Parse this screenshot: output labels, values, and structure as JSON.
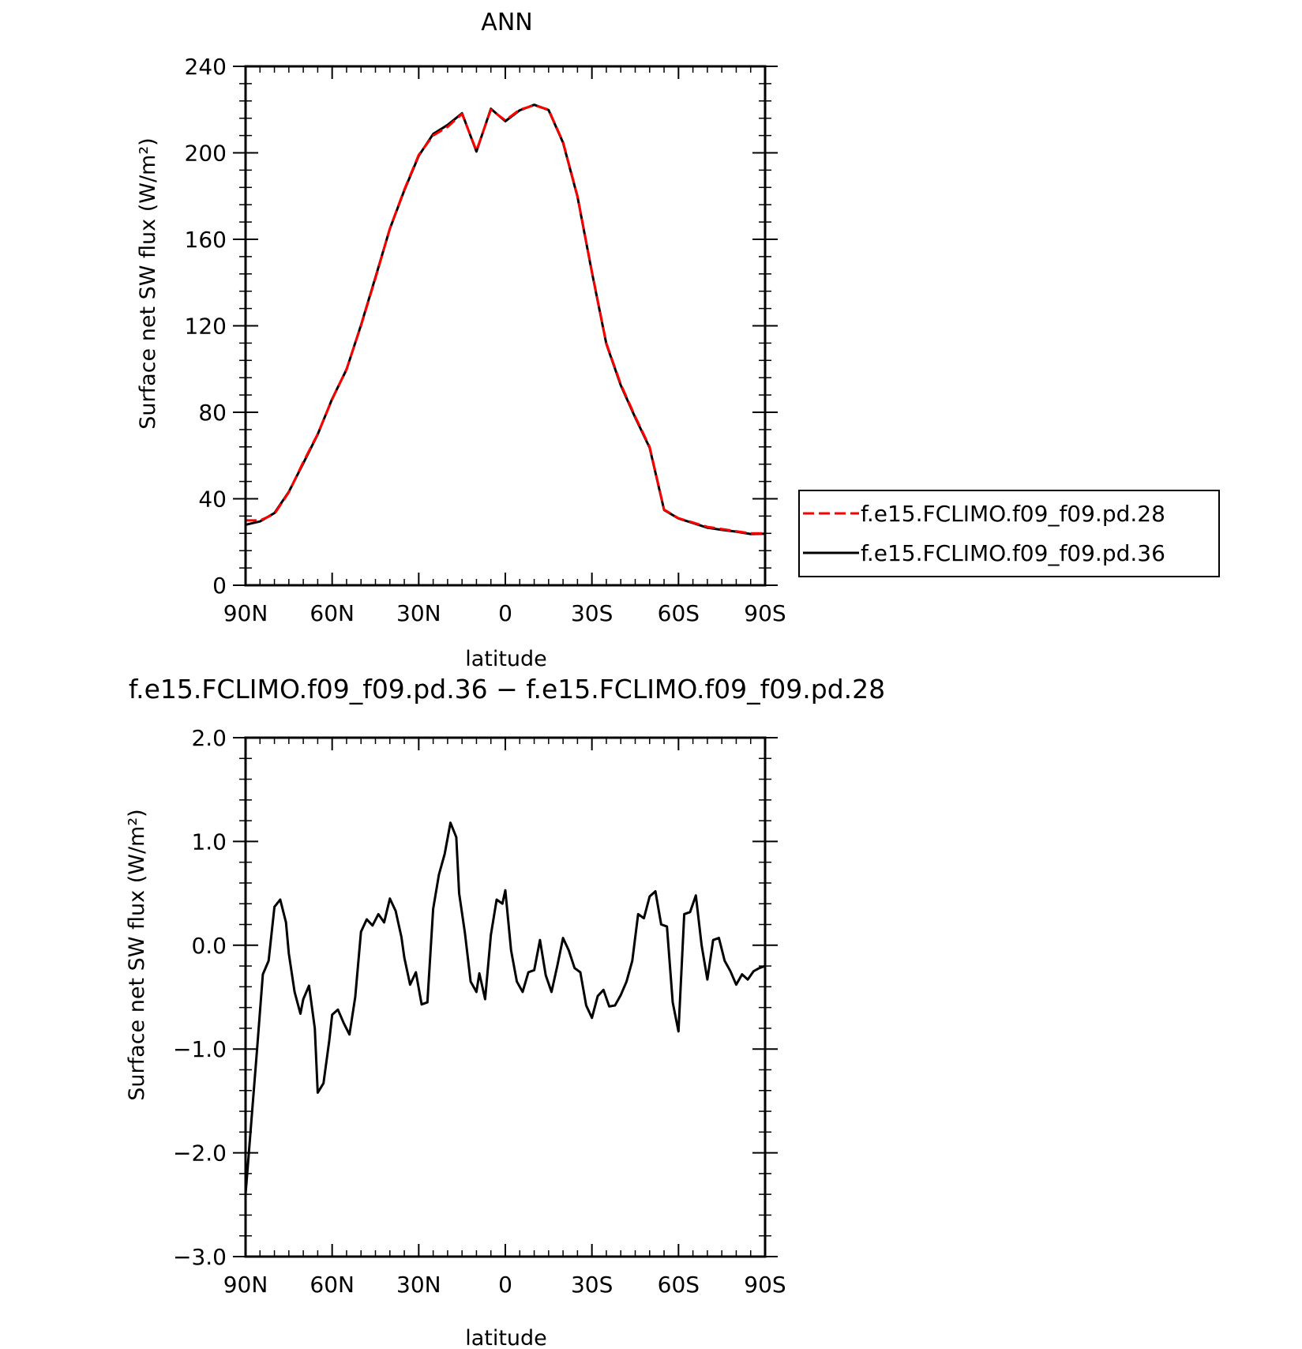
{
  "chart_data": [
    {
      "type": "line",
      "title": "ANN",
      "xlabel": "latitude",
      "ylabel": "Surface net SW flux (W/m²)",
      "xlim": [
        90,
        -90
      ],
      "ylim": [
        0,
        240
      ],
      "x_ticks": [
        90,
        60,
        30,
        0,
        -30,
        -60,
        -90
      ],
      "x_tick_labels": [
        "90N",
        "60N",
        "30N",
        "0",
        "30S",
        "60S",
        "90S"
      ],
      "y_ticks": [
        0,
        40,
        80,
        120,
        160,
        200,
        240
      ],
      "y_tick_labels": [
        "0",
        "40",
        "80",
        "120",
        "160",
        "200",
        "240"
      ],
      "legend": "right",
      "x": [
        90,
        85,
        80,
        75,
        70,
        65,
        60,
        55,
        50,
        45,
        40,
        35,
        30,
        25,
        20,
        15,
        10,
        5,
        0,
        -5,
        -10,
        -15,
        -20,
        -25,
        -30,
        -35,
        -40,
        -45,
        -50,
        -55,
        -60,
        -65,
        -70,
        -75,
        -80,
        -85,
        -90
      ],
      "series": [
        {
          "name": "f.e15.FCLIMO.f09_f09.pd.28",
          "color": "#ff0000",
          "dash": "dashed",
          "values": [
            30,
            30,
            33,
            43,
            57,
            70,
            86,
            100,
            120,
            142,
            165,
            183,
            199,
            208,
            212,
            218,
            201,
            220,
            215,
            220,
            222,
            220,
            205,
            180,
            145,
            112,
            93,
            78,
            64,
            35,
            31,
            29,
            27,
            26,
            25,
            24,
            24
          ]
        },
        {
          "name": "f.e15.FCLIMO.f09_f09.pd.36",
          "color": "#000000",
          "dash": "solid",
          "values": [
            28,
            29.5,
            33.4,
            43.2,
            56.4,
            69.8,
            86.2,
            99.8,
            120.3,
            142.4,
            164.9,
            182.7,
            198.6,
            208.7,
            212.9,
            218.3,
            200.6,
            220.4,
            214.6,
            219.7,
            222.2,
            219.8,
            204.7,
            179.7,
            144.7,
            111.7,
            92.5,
            77.6,
            63.6,
            34.8,
            30.9,
            28.8,
            26.6,
            25.6,
            24.8,
            23.7,
            23.8
          ]
        }
      ]
    },
    {
      "type": "line",
      "title": "f.e15.FCLIMO.f09_f09.pd.36 − f.e15.FCLIMO.f09_f09.pd.28",
      "xlabel": "latitude",
      "ylabel": "Surface net SW flux (W/m²)",
      "xlim": [
        90,
        -90
      ],
      "ylim": [
        -3.0,
        2.0
      ],
      "x_ticks": [
        90,
        60,
        30,
        0,
        -30,
        -60,
        -90
      ],
      "x_tick_labels": [
        "90N",
        "60N",
        "30N",
        "0",
        "30S",
        "60S",
        "90S"
      ],
      "y_ticks": [
        -3.0,
        -2.0,
        -1.0,
        0.0,
        1.0,
        2.0
      ],
      "y_tick_labels": [
        "−3.0",
        "−2.0",
        "−1.0",
        "0.0",
        "1.0",
        "2.0"
      ],
      "series": [
        {
          "color": "#000000",
          "x": [
            90,
            88,
            86,
            84,
            82,
            80,
            78,
            76,
            75,
            73,
            71,
            70,
            68,
            66,
            65,
            63,
            61,
            60,
            58,
            56,
            54,
            52,
            50,
            48,
            46,
            44,
            42,
            40,
            38,
            36,
            35,
            33,
            31,
            29,
            27,
            25,
            23,
            21,
            19,
            17,
            16,
            14,
            12,
            10,
            9,
            7,
            5,
            3,
            1,
            0,
            -2,
            -4,
            -6,
            -8,
            -10,
            -12,
            -14,
            -16,
            -18,
            -20,
            -22,
            -24,
            -26,
            -28,
            -30,
            -32,
            -34,
            -36,
            -38,
            -40,
            -42,
            -44,
            -46,
            -48,
            -50,
            -52,
            -54,
            -56,
            -58,
            -60,
            -62,
            -64,
            -66,
            -68,
            -70,
            -72,
            -74,
            -76,
            -78,
            -80,
            -82,
            -84,
            -86,
            -88,
            -90
          ],
          "y": [
            -2.4,
            -1.7,
            -1.0,
            -0.28,
            -0.15,
            0.37,
            0.44,
            0.22,
            -0.08,
            -0.45,
            -0.66,
            -0.52,
            -0.39,
            -0.8,
            -1.42,
            -1.33,
            -0.92,
            -0.67,
            -0.62,
            -0.75,
            -0.86,
            -0.5,
            0.13,
            0.25,
            0.19,
            0.3,
            0.22,
            0.45,
            0.33,
            0.08,
            -0.12,
            -0.38,
            -0.26,
            -0.57,
            -0.55,
            0.35,
            0.68,
            0.88,
            1.18,
            1.04,
            0.5,
            0.12,
            -0.35,
            -0.45,
            -0.27,
            -0.52,
            0.1,
            0.44,
            0.4,
            0.53,
            -0.05,
            -0.35,
            -0.45,
            -0.26,
            -0.24,
            0.05,
            -0.29,
            -0.45,
            -0.2,
            0.07,
            -0.05,
            -0.22,
            -0.26,
            -0.58,
            -0.7,
            -0.49,
            -0.43,
            -0.59,
            -0.58,
            -0.48,
            -0.35,
            -0.15,
            0.3,
            0.26,
            0.47,
            0.52,
            0.2,
            0.18,
            -0.55,
            -0.83,
            0.3,
            0.32,
            0.48,
            0.0,
            -0.33,
            0.05,
            0.07,
            -0.15,
            -0.25,
            -0.38,
            -0.28,
            -0.33,
            -0.25,
            -0.22,
            -0.2
          ]
        }
      ]
    }
  ]
}
